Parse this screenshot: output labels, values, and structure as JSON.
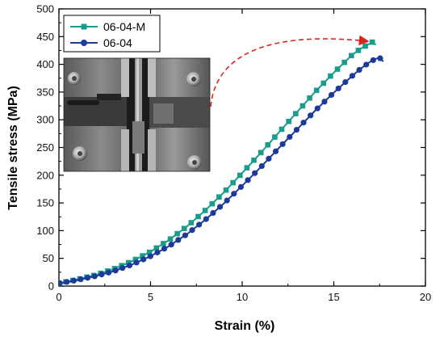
{
  "chart_data": {
    "type": "line",
    "xlabel": "Strain (%)",
    "ylabel": "Tensile stress (MPa)",
    "xlim": [
      0,
      20
    ],
    "ylim": [
      0,
      500
    ],
    "x_ticks": [
      0,
      5,
      10,
      15,
      20
    ],
    "y_ticks": [
      0,
      50,
      100,
      150,
      200,
      250,
      300,
      350,
      400,
      450,
      500
    ],
    "grid": false,
    "legend_position": "top-left",
    "inset": "photograph of the tensile test specimen clamped in testing grips",
    "annotation": "red dashed curved arrow pointing from the photo to the fracture point of 06-04-M",
    "series": [
      {
        "name": "06-04-M",
        "color": "#1a9c8c",
        "marker": "square",
        "x": [
          0.0,
          1.0,
          2.0,
          3.0,
          4.0,
          5.0,
          6.0,
          7.0,
          8.0,
          9.0,
          10.0,
          11.0,
          12.0,
          13.0,
          14.0,
          15.0,
          16.0,
          16.5,
          17.0,
          17.1,
          17.3
        ],
        "y": [
          5,
          12,
          20,
          31,
          45,
          62,
          83,
          108,
          137,
          169,
          204,
          240,
          277,
          314,
          351,
          385,
          417,
          429,
          438,
          440,
          435
        ]
      },
      {
        "name": "06-04",
        "color": "#1e3a99",
        "marker": "circle",
        "x": [
          0.0,
          1.0,
          2.0,
          3.0,
          4.0,
          5.0,
          6.0,
          7.0,
          8.0,
          9.0,
          10.0,
          11.0,
          12.0,
          13.0,
          14.0,
          15.0,
          16.0,
          16.5,
          17.0,
          17.3,
          17.5,
          17.7
        ],
        "y": [
          5,
          11,
          18,
          27,
          39,
          54,
          72,
          94,
          120,
          149,
          181,
          214,
          249,
          283,
          317,
          349,
          379,
          393,
          405,
          410,
          412,
          405
        ]
      }
    ]
  }
}
